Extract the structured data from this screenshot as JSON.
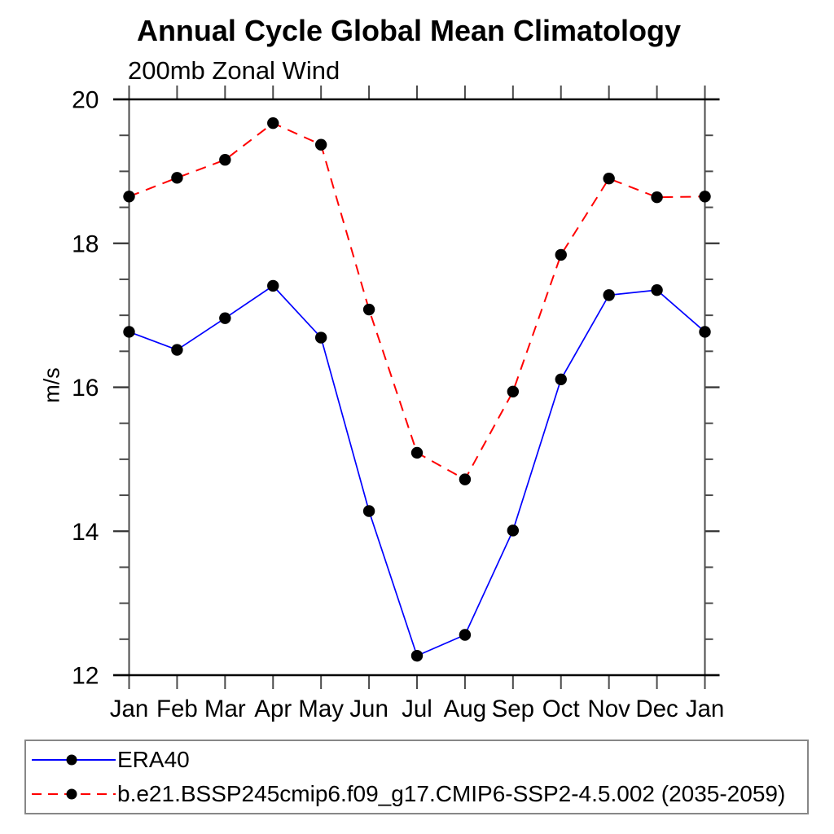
{
  "chart_data": {
    "type": "line",
    "title": "Annual Cycle Global Mean Climatology",
    "subtitle": "200mb Zonal Wind",
    "xlabel": "",
    "ylabel": "m/s",
    "categories": [
      "Jan",
      "Feb",
      "Mar",
      "Apr",
      "May",
      "Jun",
      "Jul",
      "Aug",
      "Sep",
      "Oct",
      "Nov",
      "Dec",
      "Jan"
    ],
    "ylim": [
      12,
      20
    ],
    "ytick_major": [
      12,
      14,
      16,
      18,
      20
    ],
    "ytick_minor_step": 0.5,
    "grid": false,
    "legend_position": "bottom-box",
    "series": [
      {
        "name": "ERA40",
        "color": "#0000ff",
        "line_style": "solid",
        "marker": "filled-circle",
        "marker_color": "#000000",
        "values": [
          16.77,
          16.52,
          16.96,
          17.41,
          16.69,
          14.28,
          12.27,
          12.56,
          14.01,
          16.11,
          17.28,
          17.35,
          16.77
        ]
      },
      {
        "name": "b.e21.BSSP245cmip6.f09_g17.CMIP6-SSP2-4.5.002 (2035-2059)",
        "color": "#ff0000",
        "line_style": "dashed",
        "marker": "filled-circle",
        "marker_color": "#000000",
        "values": [
          18.65,
          18.91,
          19.16,
          19.67,
          19.37,
          17.08,
          15.09,
          14.72,
          15.94,
          17.84,
          18.9,
          18.64,
          18.65
        ]
      }
    ]
  },
  "colors": {
    "axis": "#4a4a4a",
    "border": "#000000",
    "marker": "#000000",
    "legend_border": "#878787",
    "text": "#000000"
  }
}
